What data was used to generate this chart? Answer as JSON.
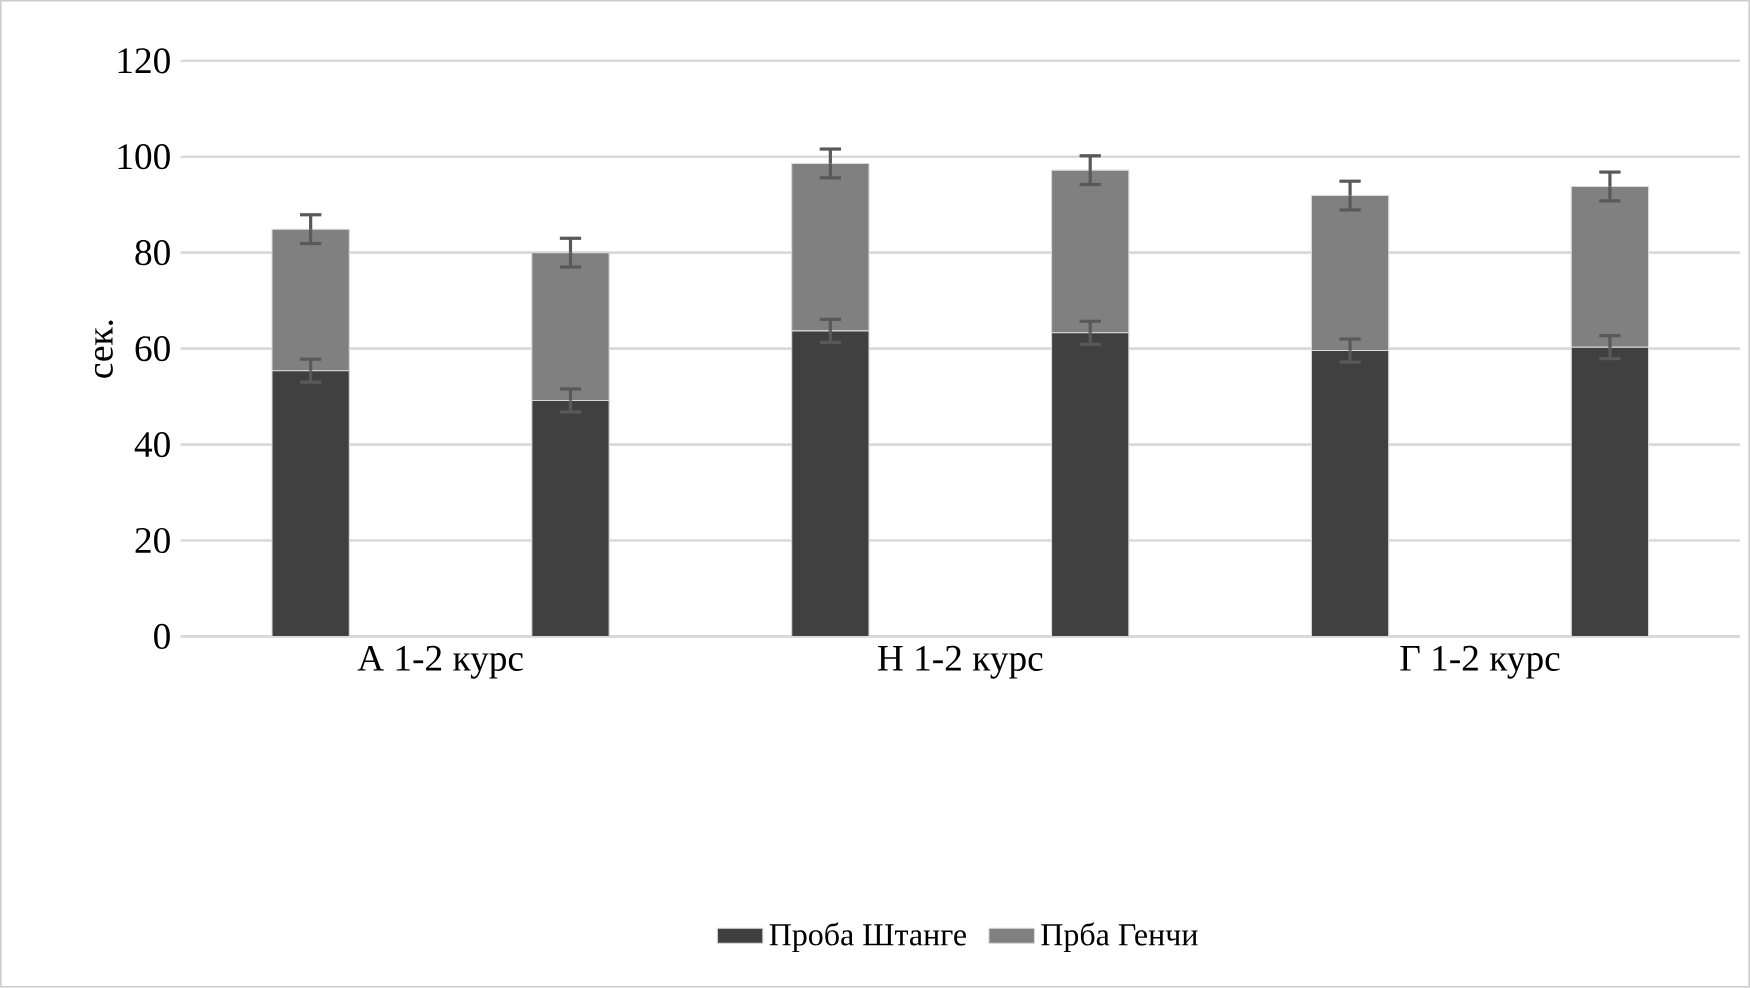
{
  "chart_data": {
    "type": "bar",
    "stacked": true,
    "ylabel": "сек.",
    "categories": [
      "А 1-2 курс",
      null,
      "Н 1-2 курс",
      null,
      "Г 1-2 курс",
      null
    ],
    "series": [
      {
        "name": "Проба Штанге",
        "color": "#404040",
        "values": [
          55.4,
          49.2,
          63.7,
          63.3,
          59.6,
          60.3
        ],
        "errors": [
          2.4,
          2.4,
          2.4,
          2.4,
          2.4,
          2.4
        ]
      },
      {
        "name": "Прба Генчи",
        "color": "#808080",
        "values": [
          29.5,
          30.8,
          34.9,
          33.9,
          32.3,
          33.5
        ],
        "errors": [
          3,
          3,
          3,
          3,
          3,
          3
        ]
      }
    ],
    "ylim": [
      0,
      120
    ],
    "yticks": [
      0,
      20,
      40,
      60,
      80,
      100,
      120
    ],
    "grid": "y",
    "legend": "bottom"
  }
}
